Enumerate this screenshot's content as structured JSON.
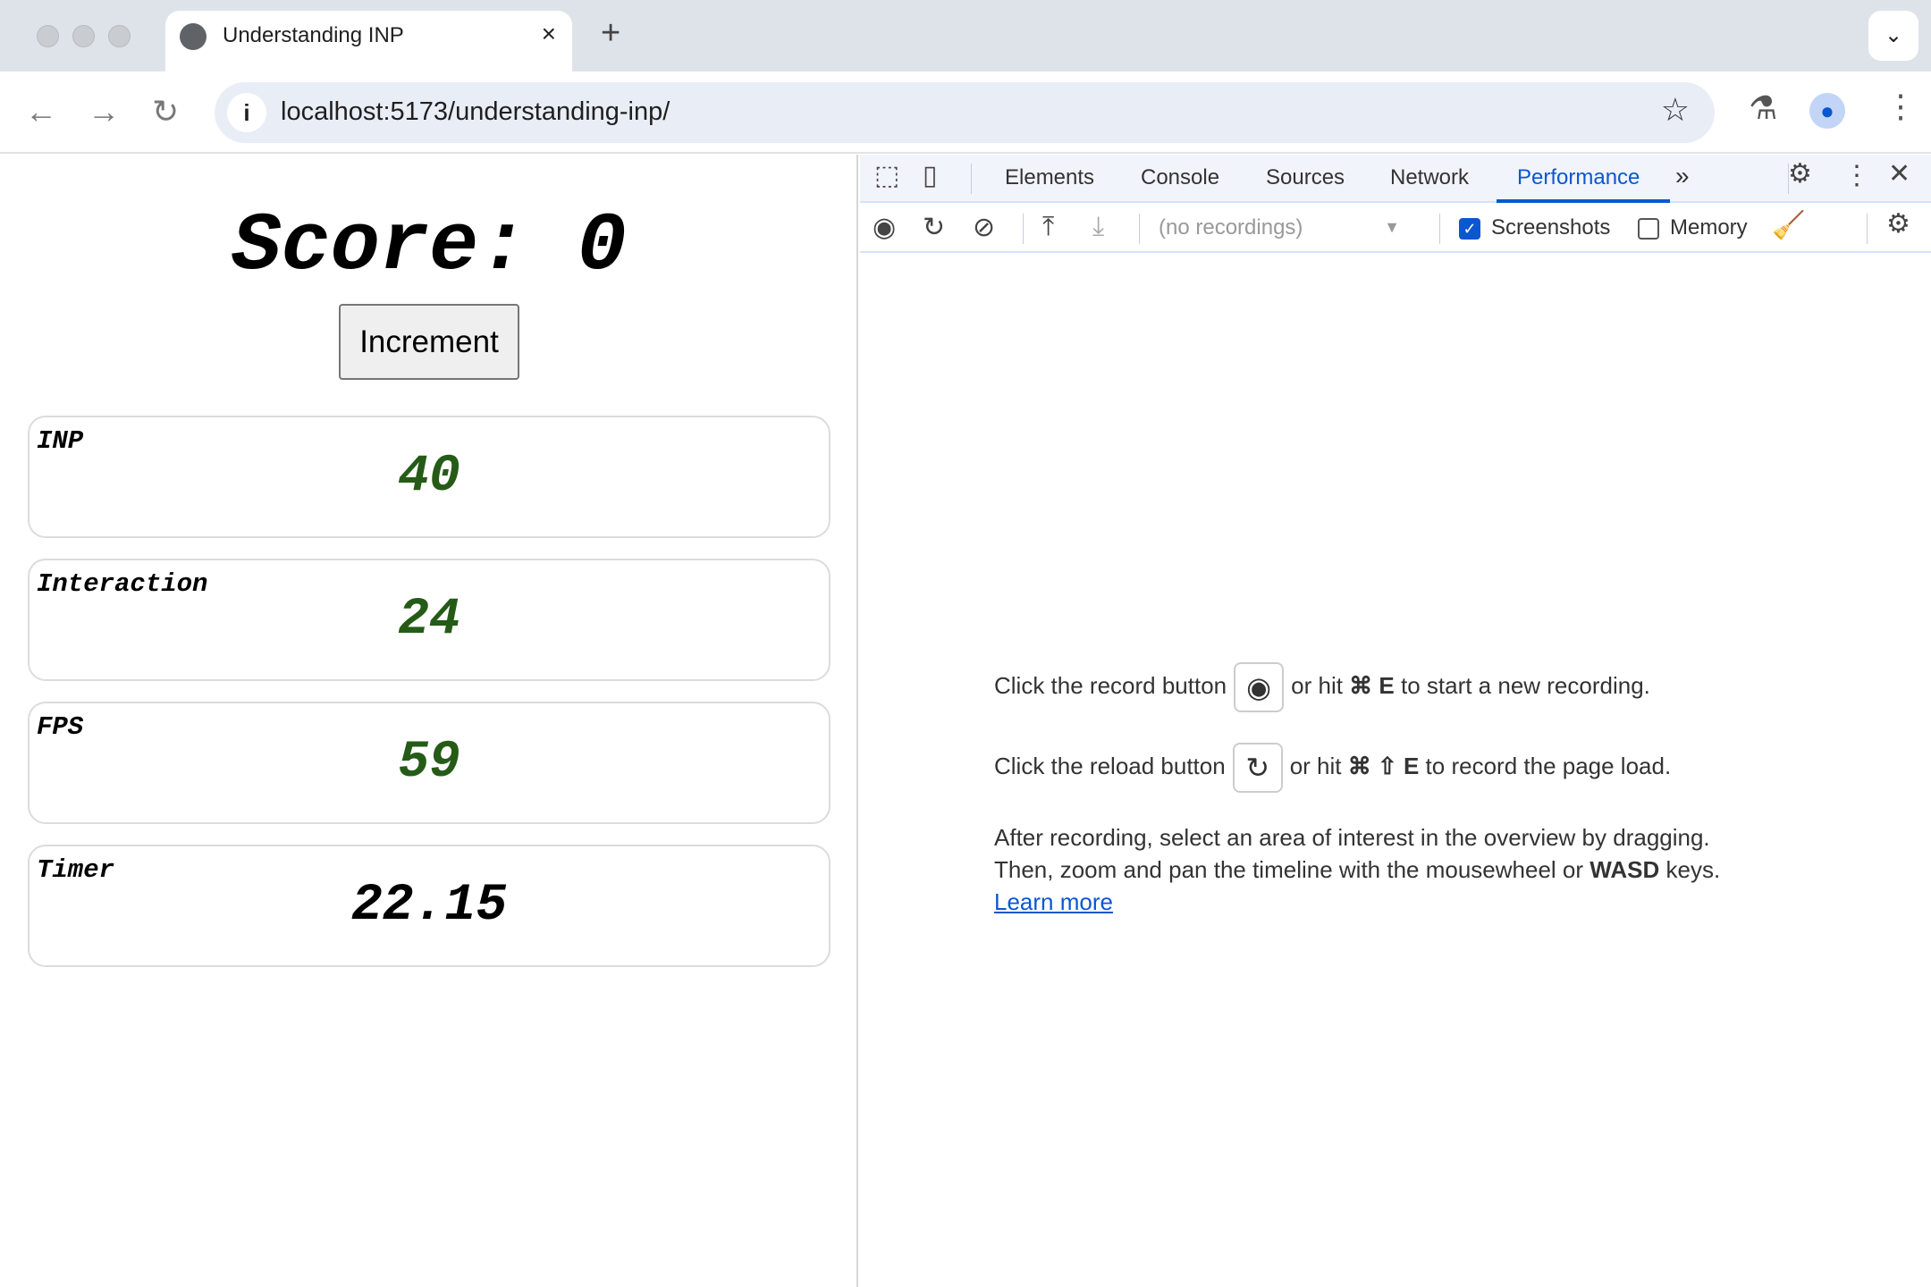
{
  "browser": {
    "tab_title": "Understanding INP",
    "tab_close": "×",
    "new_tab": "+",
    "url": "localhost:5173/understanding-inp/"
  },
  "page": {
    "score_label": "Score: 0",
    "increment_button": "Increment",
    "cards": [
      {
        "label": "INP",
        "value": "40",
        "color": "#255b17"
      },
      {
        "label": "Interaction",
        "value": "24",
        "color": "#255b17"
      },
      {
        "label": "FPS",
        "value": "59",
        "color": "#255b17"
      },
      {
        "label": "Timer",
        "value": "22.15",
        "color": "#000000"
      }
    ]
  },
  "devtools": {
    "tabs": [
      "Elements",
      "Console",
      "Sources",
      "Network",
      "Performance"
    ],
    "active_tab": "Performance",
    "recordings_select": "(no recordings)",
    "screenshots_label": "Screenshots",
    "screenshots_checked": true,
    "memory_label": "Memory",
    "memory_checked": false,
    "msg1_a": "Click the record button",
    "msg1_b": "or hit ",
    "msg1_key": "⌘ E",
    "msg1_c": " to start a new recording.",
    "msg2_a": "Click the reload button",
    "msg2_b": "or hit ",
    "msg2_key": "⌘ ⇧ E",
    "msg2_c": " to record the page load.",
    "msg3_line1": "After recording, select an area of interest in the overview by dragging.",
    "msg3_line2_a": "Then, zoom and pan the timeline with the mousewheel or ",
    "msg3_line2_key": "WASD",
    "msg3_line2_b": " keys.",
    "learn_more": "Learn more",
    "accent": "#0b57d0"
  }
}
